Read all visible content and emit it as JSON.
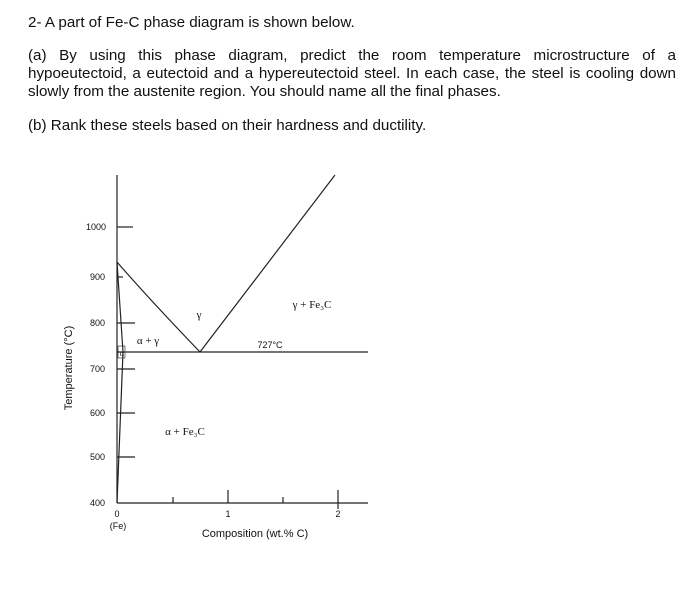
{
  "header": "2- A part of Fe-C phase diagram is shown below.",
  "part_a": "(a) By using this phase diagram, predict the room temperature microstructure of a hypoeutectoid, a eutectoid and a hypereutectoid steel. In each case, the steel is cooling down slowly from the austenite region. You should name all the final phases.",
  "part_b": "(b) Rank these steels based on their hardness and ductility.",
  "figure": {
    "yticks": [
      "1000",
      "900",
      "800",
      "700",
      "600",
      "500",
      "400"
    ],
    "xticks": [
      "0",
      "1",
      "2"
    ],
    "origin_label": "(Fe)",
    "x_label": "Composition (wt.% C)",
    "y_label": "Temperature (°C)",
    "phases": [
      "γ",
      "γ + Fe₃C",
      "α + γ",
      "α",
      "α + Fe₃C"
    ],
    "eutectoid_label": "727°C"
  }
}
